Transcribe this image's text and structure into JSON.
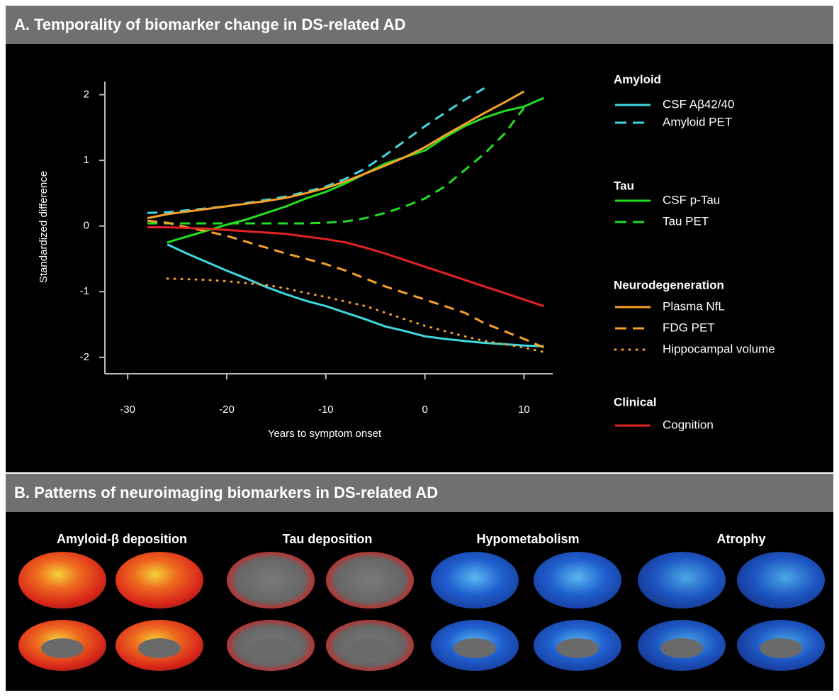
{
  "panel_a_title": "A. Temporality of biomarker change in DS-related AD",
  "chart_data": {
    "type": "line",
    "x_label": "Years to symptom onset",
    "y_label": "Standardized difference",
    "xlim": [
      -32.3,
      12.9
    ],
    "ylim": [
      -2.25,
      2.2
    ],
    "xticks": [
      -30,
      -20,
      -10,
      0,
      10
    ],
    "yticks": [
      -2,
      -1,
      0,
      1,
      2
    ],
    "x": [
      -28,
      -26,
      -24,
      -22,
      -20,
      -18,
      -16,
      -14,
      -12,
      -10,
      -8,
      -6,
      -4,
      -2,
      0,
      2,
      4,
      6,
      8,
      10,
      12
    ],
    "legend_groups": [
      "Amyloid",
      "Tau",
      "Neurodegeneration",
      "Clinical"
    ],
    "series": [
      {
        "name": "CSF Aβ42/40",
        "color": "#3fd8e0",
        "dash": "solid",
        "group": 0,
        "values": [
          null,
          -0.28,
          -0.42,
          -0.55,
          -0.68,
          -0.8,
          -0.93,
          -1.04,
          -1.14,
          -1.22,
          -1.32,
          -1.42,
          -1.53,
          -1.6,
          -1.68,
          -1.72,
          -1.75,
          -1.78,
          -1.8,
          -1.82,
          -1.83
        ]
      },
      {
        "name": "Amyloid PET",
        "color": "#3fd8e0",
        "dash": "dashed",
        "group": 0,
        "values": [
          0.2,
          0.21,
          0.24,
          0.27,
          0.3,
          0.35,
          0.4,
          0.45,
          0.52,
          0.6,
          0.72,
          0.88,
          1.08,
          1.3,
          1.52,
          1.72,
          1.92,
          2.1,
          null,
          null,
          null
        ]
      },
      {
        "name": "CSF p-Tau",
        "color": "#22dd22",
        "dash": "solid",
        "group": 1,
        "values": [
          null,
          -0.25,
          -0.16,
          -0.07,
          0.02,
          0.1,
          0.2,
          0.3,
          0.42,
          0.52,
          0.65,
          0.8,
          0.95,
          1.05,
          1.15,
          1.35,
          1.52,
          1.65,
          1.75,
          1.82,
          1.95
        ]
      },
      {
        "name": "Tau PET",
        "color": "#22dd22",
        "dash": "dashed",
        "group": 1,
        "values": [
          0.04,
          0.04,
          0.04,
          0.04,
          0.04,
          0.04,
          0.04,
          0.04,
          0.04,
          0.05,
          0.07,
          0.12,
          0.2,
          0.3,
          0.42,
          0.6,
          0.85,
          1.1,
          1.4,
          1.8,
          null
        ]
      },
      {
        "name": "Plasma NfL",
        "color": "#f7a128",
        "dash": "solid",
        "group": 2,
        "values": [
          0.12,
          0.18,
          0.22,
          0.26,
          0.3,
          0.34,
          0.38,
          0.43,
          0.5,
          0.58,
          0.68,
          0.8,
          0.92,
          1.05,
          1.2,
          1.38,
          1.55,
          1.72,
          1.88,
          2.05,
          null
        ]
      },
      {
        "name": "FDG PET",
        "color": "#f7a128",
        "dash": "dashed",
        "group": 2,
        "values": [
          0.08,
          0.05,
          -0.02,
          -0.08,
          -0.15,
          -0.24,
          -0.33,
          -0.42,
          -0.5,
          -0.58,
          -0.68,
          -0.8,
          -0.92,
          -1.02,
          -1.12,
          -1.22,
          -1.32,
          -1.48,
          -1.6,
          -1.72,
          -1.85
        ]
      },
      {
        "name": "Hippocampal volume",
        "color": "#f7a128",
        "dash": "dotted",
        "group": 2,
        "values": [
          null,
          -0.8,
          -0.81,
          -0.82,
          -0.84,
          -0.87,
          -0.9,
          -0.95,
          -1.02,
          -1.08,
          -1.15,
          -1.22,
          -1.32,
          -1.42,
          -1.52,
          -1.6,
          -1.68,
          -1.75,
          -1.8,
          -1.85,
          -1.92
        ]
      },
      {
        "name": "Cognition",
        "color": "#e52222",
        "dash": "solid",
        "group": 3,
        "values": [
          -0.02,
          -0.02,
          -0.03,
          -0.04,
          -0.06,
          -0.08,
          -0.1,
          -0.12,
          -0.16,
          -0.2,
          -0.25,
          -0.33,
          -0.42,
          -0.52,
          -0.62,
          -0.72,
          -0.82,
          -0.92,
          -1.02,
          -1.12,
          -1.22
        ]
      }
    ]
  },
  "panel_b": {
    "title": "B. Patterns of neuroimaging biomarkers in DS-related AD",
    "columns": [
      "Amyloid-β deposition",
      "Tau deposition",
      "Hypometabolism",
      "Atrophy"
    ]
  }
}
